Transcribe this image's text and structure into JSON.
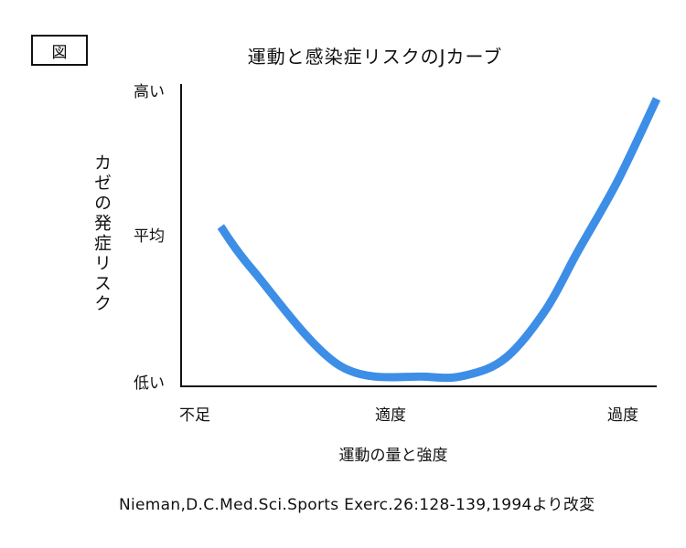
{
  "figure_label": "図",
  "chart_data": {
    "type": "line",
    "title": "運動と感染症リスクのJカーブ",
    "ylabel": "カゼの発症リスク",
    "xlabel": "運動の量と強度",
    "y_ticks": [
      "高い",
      "平均",
      "低い"
    ],
    "x_ticks": [
      "不足",
      "適度",
      "過度"
    ],
    "series": [
      {
        "x": [
          0.25,
          0.45,
          1.0,
          1.55,
          1.8,
          2.05,
          2.3,
          2.5,
          2.75,
          3.0
        ],
        "y": [
          1.0,
          0.73,
          0.13,
          0.06,
          0.07,
          0.18,
          0.48,
          0.84,
          1.28,
          1.8
        ]
      }
    ],
    "xlim": [
      0,
      3.0
    ],
    "ylim": [
      0,
      1.95
    ],
    "color": "#3d8ee6",
    "grid": false,
    "legend": "none"
  },
  "source": "Nieman,D.C.Med.Sci.Sports Exerc.26:128-139,1994より改変"
}
